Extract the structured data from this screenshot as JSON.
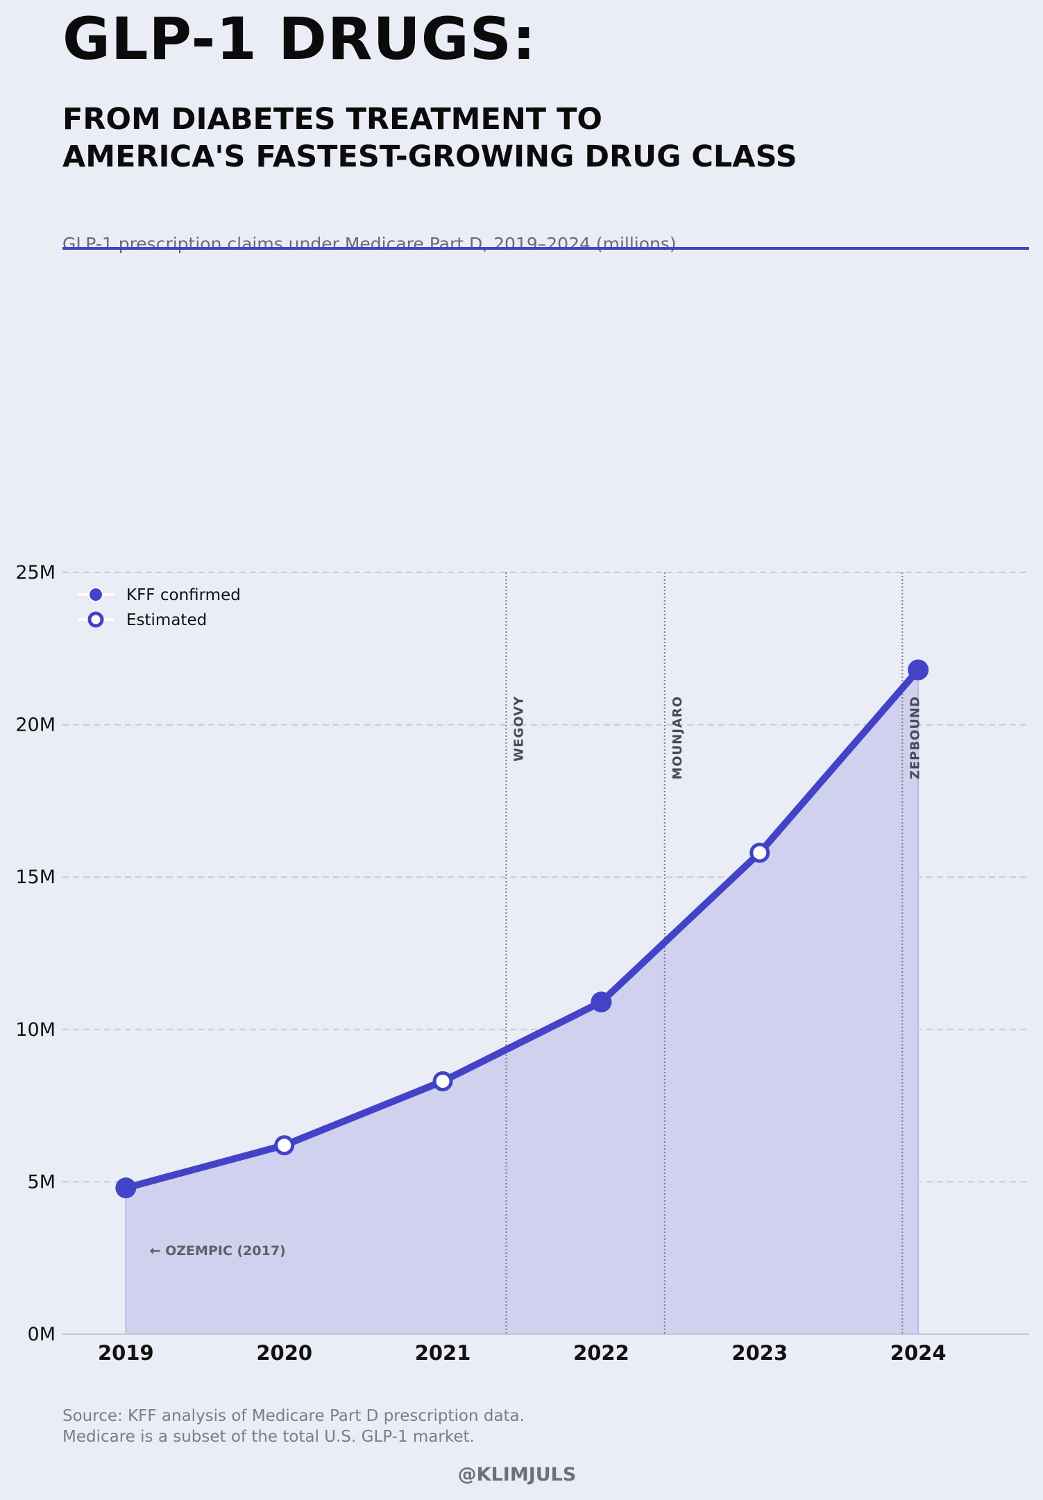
{
  "header": {
    "title": "GLP-1 DRUGS:",
    "subtitle_lines": [
      "FROM DIABETES TREATMENT TO",
      "AMERICA'S FASTEST-GROWING DRUG CLASS"
    ],
    "description": "GLP-1 prescription claims under Medicare Part D, 2019–2024 (millions)"
  },
  "chart_data": {
    "type": "area",
    "x": [
      2019,
      2020,
      2021,
      2022,
      2023,
      2024
    ],
    "values": [
      4.8,
      6.2,
      8.3,
      10.9,
      15.8,
      21.8
    ],
    "status": [
      "confirmed",
      "estimated",
      "estimated",
      "confirmed",
      "estimated",
      "confirmed"
    ],
    "ylim": [
      0,
      25
    ],
    "xlim": [
      2018.6,
      2024.7
    ],
    "yticks": [
      0,
      5,
      10,
      15,
      20,
      25
    ],
    "ytick_labels": [
      "0M",
      "5M",
      "10M",
      "15M",
      "20M",
      "25M"
    ],
    "grid": "horizontal dashed",
    "legend": {
      "placement": "top-left",
      "entries": [
        {
          "label": "KFF confirmed",
          "marker": "filled"
        },
        {
          "label": "Estimated",
          "marker": "hollow"
        }
      ]
    },
    "events": [
      {
        "label": "WEGOVY",
        "x": 2021.4
      },
      {
        "label": "MOUNJARO",
        "x": 2022.4
      },
      {
        "label": "ZEPBOUND",
        "x": 2023.9
      }
    ],
    "annotation": {
      "text": "← OZEMPIC (2017)",
      "x": 2019.15,
      "y": 2.6
    },
    "colors": {
      "line": "#4343c8",
      "fill": "#d0d1ee",
      "event_line": "#7a7a84",
      "grid": "#c8c9da"
    }
  },
  "footer": {
    "source_lines": [
      "Source: KFF analysis of Medicare Part D prescription data.",
      "Medicare is a subset of the total U.S. GLP-1 market."
    ],
    "handle": "@KLIMJULS"
  }
}
